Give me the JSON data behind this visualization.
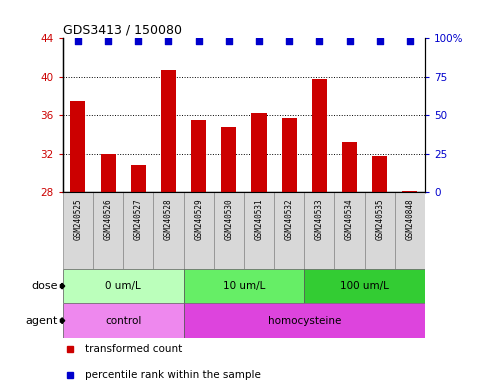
{
  "title": "GDS3413 / 150080",
  "samples": [
    "GSM240525",
    "GSM240526",
    "GSM240527",
    "GSM240528",
    "GSM240529",
    "GSM240530",
    "GSM240531",
    "GSM240532",
    "GSM240533",
    "GSM240534",
    "GSM240535",
    "GSM240848"
  ],
  "bar_values": [
    37.5,
    32.0,
    30.8,
    40.7,
    35.5,
    34.8,
    36.2,
    35.7,
    39.8,
    33.2,
    31.8,
    28.1
  ],
  "bar_color": "#cc0000",
  "dot_color": "#0000cc",
  "pct_value": 98.5,
  "ylim_left": [
    28,
    44
  ],
  "ylim_right": [
    0,
    100
  ],
  "yticks_left": [
    28,
    32,
    36,
    40,
    44
  ],
  "yticks_right": [
    0,
    25,
    50,
    75,
    100
  ],
  "ytick_labels_right": [
    "0",
    "25",
    "50",
    "75",
    "100%"
  ],
  "bar_bottom": 28,
  "dose_groups": [
    {
      "label": "0 um/L",
      "start": 0,
      "end": 4,
      "color": "#bbffbb"
    },
    {
      "label": "10 um/L",
      "start": 4,
      "end": 8,
      "color": "#66ee66"
    },
    {
      "label": "100 um/L",
      "start": 8,
      "end": 12,
      "color": "#33cc33"
    }
  ],
  "agent_groups": [
    {
      "label": "control",
      "start": 0,
      "end": 4,
      "color": "#ee88ee"
    },
    {
      "label": "homocysteine",
      "start": 4,
      "end": 12,
      "color": "#dd44dd"
    }
  ],
  "dose_label": "dose",
  "agent_label": "agent",
  "sample_bg_color": "#d8d8d8",
  "legend_items": [
    {
      "color": "#cc0000",
      "label": "transformed count"
    },
    {
      "color": "#0000cc",
      "label": "percentile rank within the sample"
    }
  ]
}
